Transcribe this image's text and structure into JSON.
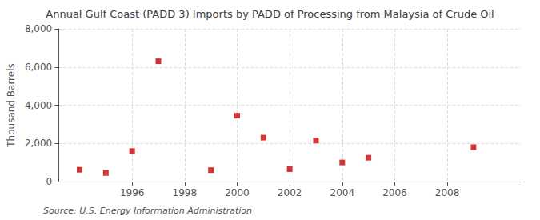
{
  "chart_data": {
    "type": "scatter",
    "title": "Annual Gulf Coast (PADD 3) Imports by PADD of Processing from Malaysia of Crude Oil",
    "ylabel": "Thousand Barrels",
    "annotation": "Source: U.S. Energy Information Administration",
    "x": [
      1994,
      1995,
      1996,
      1997,
      1999,
      2000,
      2001,
      2002,
      2003,
      2004,
      2005,
      2009
    ],
    "values": [
      620,
      450,
      1600,
      6300,
      600,
      3450,
      2300,
      650,
      2150,
      1000,
      1250,
      1800
    ],
    "color": "#cc0000",
    "marker": "square",
    "xlim": [
      1993.2,
      2010.8
    ],
    "xticks": [
      1996,
      1998,
      2000,
      2002,
      2004,
      2006,
      2008
    ],
    "ylim": [
      0,
      8000
    ],
    "yticks": [
      0,
      {
        "value": 2000,
        "label": "2,000"
      },
      {
        "value": 4000,
        "label": "4,000"
      },
      {
        "value": 6000,
        "label": "6,000"
      },
      {
        "value": 8000,
        "label": "8,000"
      }
    ],
    "grid": true
  }
}
